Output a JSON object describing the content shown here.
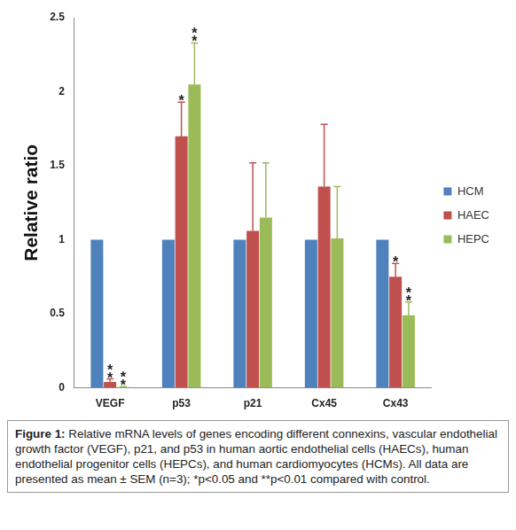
{
  "chart_data": {
    "type": "bar",
    "y_label": "Relative ratio",
    "categories": [
      "VEGF",
      "p53",
      "p21",
      "Cx45",
      "Cx43"
    ],
    "series": [
      {
        "name": "HCM",
        "color": "#4f81bd",
        "values": [
          1,
          1,
          1,
          1,
          1
        ]
      },
      {
        "name": "HAEC",
        "color": "#c0504d",
        "values": [
          0.04,
          1.7,
          1.06,
          1.36,
          0.75
        ],
        "errors": [
          0.02,
          0.23,
          0.46,
          0.42,
          0.09
        ],
        "significance": [
          "**",
          "*",
          null,
          null,
          "*"
        ]
      },
      {
        "name": "HEPC",
        "color": "#9bbb59",
        "values": [
          0.005,
          2.05,
          1.15,
          1.01,
          0.49
        ],
        "errors": [
          0.004,
          0.28,
          0.37,
          0.35,
          0.09
        ],
        "significance": [
          "**",
          "**",
          null,
          null,
          "**"
        ]
      }
    ],
    "ylim": [
      0,
      2.5
    ],
    "yticks": [
      0,
      0.5,
      1,
      1.5,
      2,
      2.5
    ],
    "grid": false,
    "legend": "right",
    "caption_label": "Figure 1:",
    "caption": "Relative mRNA levels of genes encoding different connexins, vascular endothelial growth factor (VEGF), p21, and p53 in human aortic endothelial cells (HAECs), human endothelial progenitor cells (HEPCs), and human cardiomyocytes (HCMs). All data are presented as mean ± SEM (n=3); *p<0.05 and **p<0.01 compared with control."
  }
}
